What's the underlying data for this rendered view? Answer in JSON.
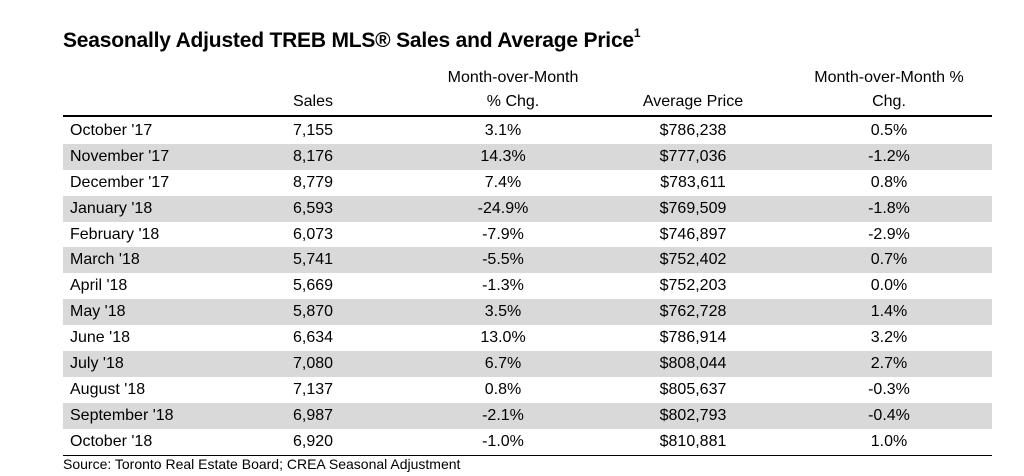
{
  "title": "Seasonally Adjusted TREB MLS® Sales and Average Price",
  "title_footnote": "1",
  "headers": {
    "sales": "Sales",
    "mom_line1": "Month-over-Month",
    "mom_line2": "% Chg.",
    "avg_price": "Average Price",
    "pct_line1": "Month-over-Month %",
    "pct_line2": "Chg."
  },
  "rows": [
    {
      "month": "October '17",
      "sales": "7,155",
      "mom": "3.1%",
      "avg": "$786,238",
      "pct": "0.5%"
    },
    {
      "month": "November '17",
      "sales": "8,176",
      "mom": "14.3%",
      "avg": "$777,036",
      "pct": "-1.2%"
    },
    {
      "month": "December '17",
      "sales": "8,779",
      "mom": "7.4%",
      "avg": "$783,611",
      "pct": "0.8%"
    },
    {
      "month": "January '18",
      "sales": "6,593",
      "mom": "-24.9%",
      "avg": "$769,509",
      "pct": "-1.8%"
    },
    {
      "month": "February '18",
      "sales": "6,073",
      "mom": "-7.9%",
      "avg": "$746,897",
      "pct": "-2.9%"
    },
    {
      "month": "March '18",
      "sales": "5,741",
      "mom": "-5.5%",
      "avg": "$752,402",
      "pct": "0.7%"
    },
    {
      "month": "April '18",
      "sales": "5,669",
      "mom": "-1.3%",
      "avg": "$752,203",
      "pct": "0.0%"
    },
    {
      "month": "May '18",
      "sales": "5,870",
      "mom": "3.5%",
      "avg": "$762,728",
      "pct": "1.4%"
    },
    {
      "month": "June '18",
      "sales": "6,634",
      "mom": "13.0%",
      "avg": "$786,914",
      "pct": "3.2%"
    },
    {
      "month": "July '18",
      "sales": "7,080",
      "mom": "6.7%",
      "avg": "$808,044",
      "pct": "2.7%"
    },
    {
      "month": "August '18",
      "sales": "7,137",
      "mom": "0.8%",
      "avg": "$805,637",
      "pct": "-0.3%"
    },
    {
      "month": "September '18",
      "sales": "6,987",
      "mom": "-2.1%",
      "avg": "$802,793",
      "pct": "-0.4%"
    },
    {
      "month": "October '18",
      "sales": "6,920",
      "mom": "-1.0%",
      "avg": "$810,881",
      "pct": "1.0%"
    }
  ],
  "source": "Source: Toronto Real Estate Board; CREA Seasonal Adjustment",
  "colors": {
    "row_shade": "#d9d9d9",
    "rule": "#000000",
    "text": "#000000"
  }
}
